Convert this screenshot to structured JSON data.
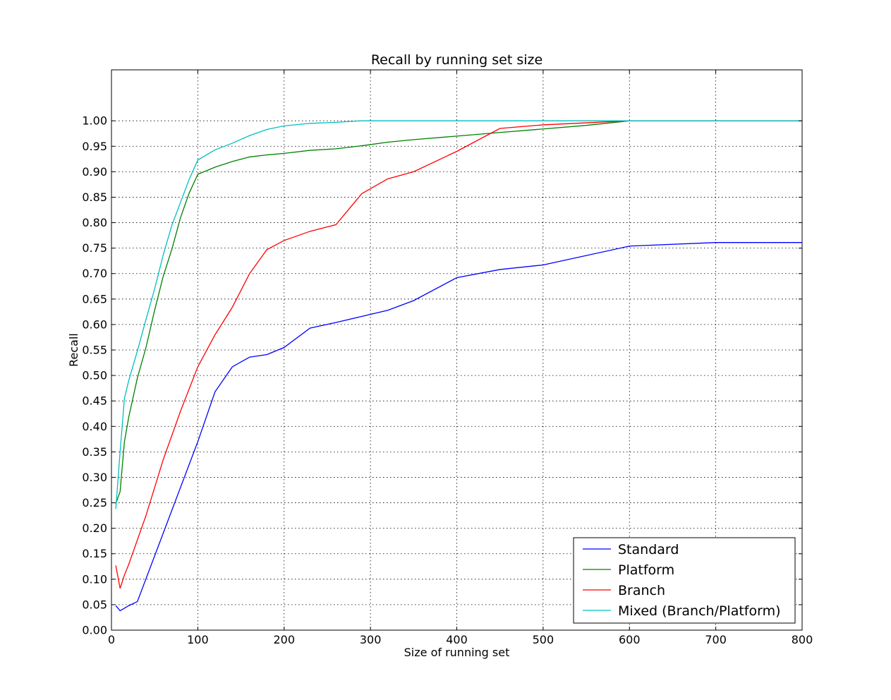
{
  "chart_data": {
    "type": "line",
    "title": "Recall by running set size",
    "xlabel": "Size of running set",
    "ylabel": "Recall",
    "xlim": [
      0,
      800
    ],
    "ylim": [
      0,
      1.1
    ],
    "grid": true,
    "legend_position": "lower-right",
    "x_ticks": [
      "0",
      "100",
      "200",
      "300",
      "400",
      "500",
      "600",
      "700",
      "800"
    ],
    "y_ticks": [
      "0.00",
      "0.05",
      "0.10",
      "0.15",
      "0.20",
      "0.25",
      "0.30",
      "0.35",
      "0.40",
      "0.45",
      "0.50",
      "0.55",
      "0.60",
      "0.65",
      "0.70",
      "0.75",
      "0.80",
      "0.85",
      "0.90",
      "0.95",
      "1.00"
    ],
    "series": [
      {
        "name": "Standard",
        "color": "#0000ff",
        "x": [
          5,
          10,
          20,
          30,
          100,
          120,
          140,
          160,
          180,
          200,
          230,
          260,
          290,
          320,
          350,
          400,
          450,
          500,
          600,
          700,
          800
        ],
        "y": [
          0.048,
          0.038,
          0.048,
          0.056,
          0.37,
          0.468,
          0.517,
          0.536,
          0.541,
          0.555,
          0.593,
          0.604,
          0.616,
          0.628,
          0.647,
          0.692,
          0.708,
          0.717,
          0.754,
          0.761,
          0.761
        ]
      },
      {
        "name": "Platform",
        "color": "#008000",
        "x": [
          5,
          10,
          15,
          20,
          30,
          40,
          50,
          60,
          70,
          80,
          90,
          100,
          120,
          140,
          160,
          180,
          200,
          230,
          260,
          290,
          320,
          350,
          400,
          450,
          500,
          550,
          600,
          700,
          800
        ],
        "y": [
          0.248,
          0.272,
          0.37,
          0.418,
          0.495,
          0.555,
          0.628,
          0.695,
          0.748,
          0.81,
          0.858,
          0.895,
          0.909,
          0.92,
          0.929,
          0.933,
          0.936,
          0.942,
          0.945,
          0.951,
          0.958,
          0.963,
          0.97,
          0.977,
          0.984,
          0.991,
          1.0,
          1.0,
          1.0
        ]
      },
      {
        "name": "Branch",
        "color": "#ff0000",
        "x": [
          5,
          10,
          15,
          20,
          40,
          60,
          80,
          100,
          120,
          140,
          160,
          180,
          200,
          230,
          260,
          290,
          320,
          350,
          400,
          450,
          500,
          550,
          600,
          700,
          800
        ],
        "y": [
          0.127,
          0.082,
          0.108,
          0.129,
          0.225,
          0.335,
          0.43,
          0.517,
          0.58,
          0.634,
          0.7,
          0.747,
          0.765,
          0.783,
          0.796,
          0.857,
          0.886,
          0.9,
          0.94,
          0.985,
          0.992,
          0.996,
          1.0,
          1.0,
          1.0
        ]
      },
      {
        "name": "Mixed (Branch/Platform)",
        "color": "#00bfbf",
        "x": [
          5,
          10,
          15,
          20,
          30,
          40,
          50,
          60,
          70,
          80,
          90,
          100,
          120,
          140,
          160,
          180,
          200,
          230,
          260,
          290,
          320,
          400,
          500,
          600,
          700,
          800
        ],
        "y": [
          0.238,
          0.35,
          0.455,
          0.49,
          0.548,
          0.61,
          0.67,
          0.737,
          0.795,
          0.84,
          0.885,
          0.923,
          0.943,
          0.956,
          0.971,
          0.983,
          0.99,
          0.995,
          0.997,
          1.0,
          1.0,
          1.0,
          1.0,
          1.0,
          1.0,
          1.0
        ]
      }
    ]
  }
}
